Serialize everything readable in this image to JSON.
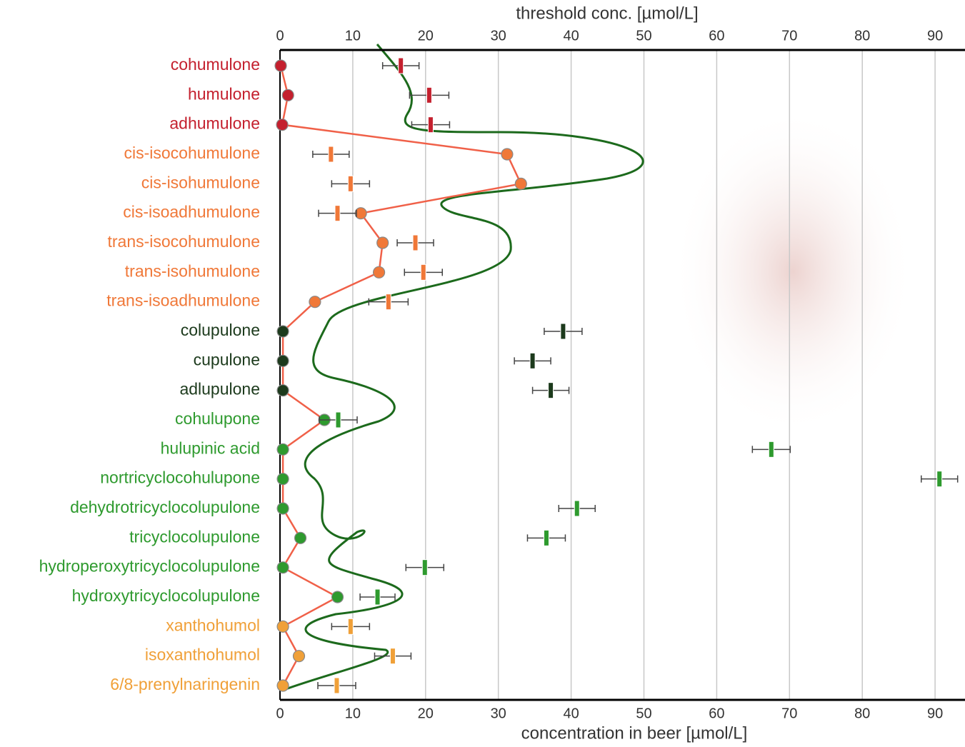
{
  "chart_data": {
    "type": "dot-threshold",
    "x_label_top": "threshold conc. [µmol/L]",
    "x_label_bottom": "concentration in beer [µmol/L]",
    "categories": [
      "cohumulone",
      "humulone",
      "adhumulone",
      "cis-isocohumulone",
      "cis-isohumulone",
      "cis-isoadhumulone",
      "trans-isocohumulone",
      "trans-isohumulone",
      "trans-isoadhumulone",
      "colupulone",
      "cupulone",
      "adlupulone",
      "cohulupone",
      "hulupinic acid",
      "nortricyclocohulupone",
      "dehydrotricyclocolupulone",
      "tricyclocolupulone",
      "hydroperoxytricyclocolupulone",
      "hydroxytricyclocolupulone",
      "xanthohumol",
      "isoxanthohumol",
      "6/8-prenylnaringenin"
    ],
    "category_colors": [
      "#c4202e",
      "#c4202e",
      "#c4202e",
      "#f07838",
      "#f07838",
      "#f07838",
      "#f07838",
      "#f07838",
      "#f07838",
      "#1c3a1c",
      "#1c3a1c",
      "#1c3a1c",
      "#2e9a2e",
      "#2e9a2e",
      "#2e9a2e",
      "#2e9a2e",
      "#2e9a2e",
      "#2e9a2e",
      "#2e9a2e",
      "#f0a038",
      "#f0a038",
      "#f0a038"
    ],
    "series": [
      {
        "axis": "x",
        "line_color": "#f06048",
        "values": [
          0.1,
          1.1,
          0.3,
          31.2,
          33.1,
          11.1,
          14.1,
          13.6,
          4.8,
          0.4,
          0.4,
          0.4,
          6.1,
          0.4,
          0.4,
          0.4,
          2.8,
          0.4,
          7.9,
          0.4,
          2.6,
          0.4
        ]
      },
      {
        "axis": "x2",
        "values": [
          16.6,
          20.5,
          20.7,
          7.0,
          9.7,
          7.9,
          18.6,
          19.7,
          14.9,
          38.9,
          34.7,
          37.2,
          8.0,
          67.5,
          90.6,
          40.8,
          36.6,
          19.9,
          13.4,
          9.7,
          15.5,
          7.8
        ],
        "errors": [
          2.5,
          2.7,
          2.6,
          2.5,
          2.6,
          2.6,
          2.5,
          2.6,
          2.7,
          2.6,
          2.5,
          2.5,
          2.6,
          2.6,
          2.5,
          2.5,
          2.6,
          2.6,
          2.4,
          2.6,
          2.5,
          2.6
        ]
      }
    ],
    "xlim": [
      0,
      94
    ],
    "xticks": [
      0,
      10,
      20,
      30,
      40,
      50,
      60,
      70,
      80,
      90
    ],
    "grid": true
  }
}
